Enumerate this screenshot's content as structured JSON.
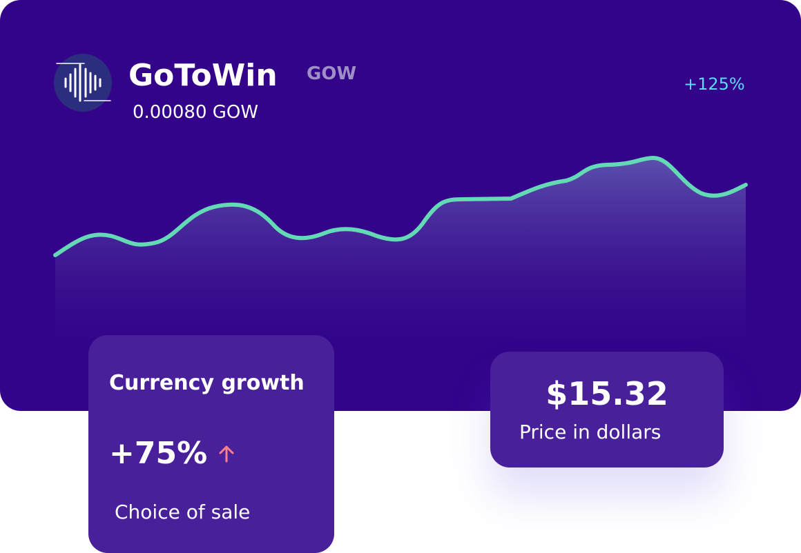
{
  "header": {
    "name": "GoToWin",
    "ticker": "GOW",
    "balance": "0.00080 GOW",
    "change": "+125%"
  },
  "growth_card": {
    "title": "Currency growth",
    "value": "+75%",
    "subtitle": "Choice of sale"
  },
  "price_card": {
    "value": "$15.32",
    "label": "Price in dollars"
  }
}
